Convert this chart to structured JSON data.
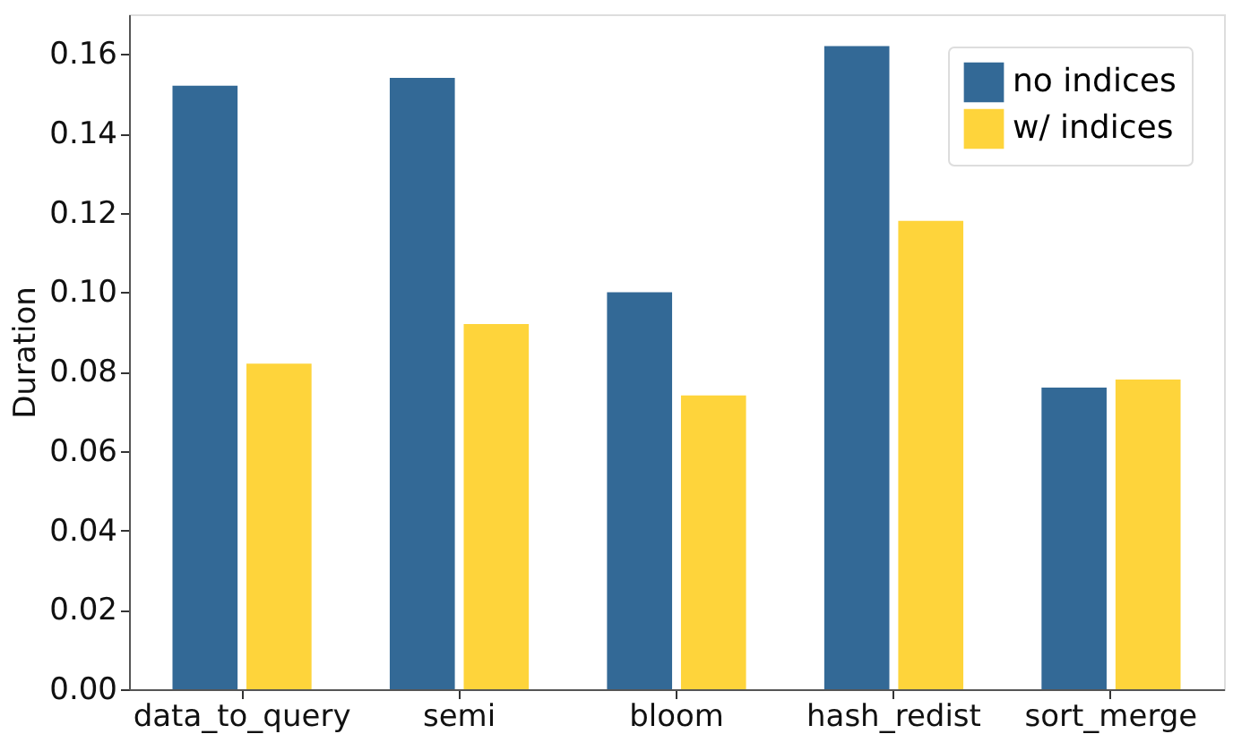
{
  "chart_data": {
    "type": "bar",
    "ylabel": "Duration",
    "categories": [
      "data_to_query",
      "semi",
      "bloom",
      "hash_redist",
      "sort_merge"
    ],
    "series": [
      {
        "name": "no indices",
        "color": "#336996",
        "values": [
          0.152,
          0.154,
          0.1,
          0.162,
          0.076
        ]
      },
      {
        "name": "w/ indices",
        "color": "#fed43b",
        "values": [
          0.082,
          0.092,
          0.074,
          0.118,
          0.078
        ]
      }
    ],
    "ylim": [
      0,
      0.17
    ],
    "yticks": [
      {
        "value": 0,
        "label": "0.00"
      },
      {
        "value": 0.02,
        "label": "0.02"
      },
      {
        "value": 0.04,
        "label": "0.04"
      },
      {
        "value": 0.06,
        "label": "0.06"
      },
      {
        "value": 0.08,
        "label": "0.08"
      },
      {
        "value": 0.1,
        "label": "0.10"
      },
      {
        "value": 0.12,
        "label": "0.12"
      },
      {
        "value": 0.14,
        "label": "0.14"
      },
      {
        "value": 0.16,
        "label": "0.16"
      }
    ],
    "grid": false,
    "legend": "top right"
  }
}
